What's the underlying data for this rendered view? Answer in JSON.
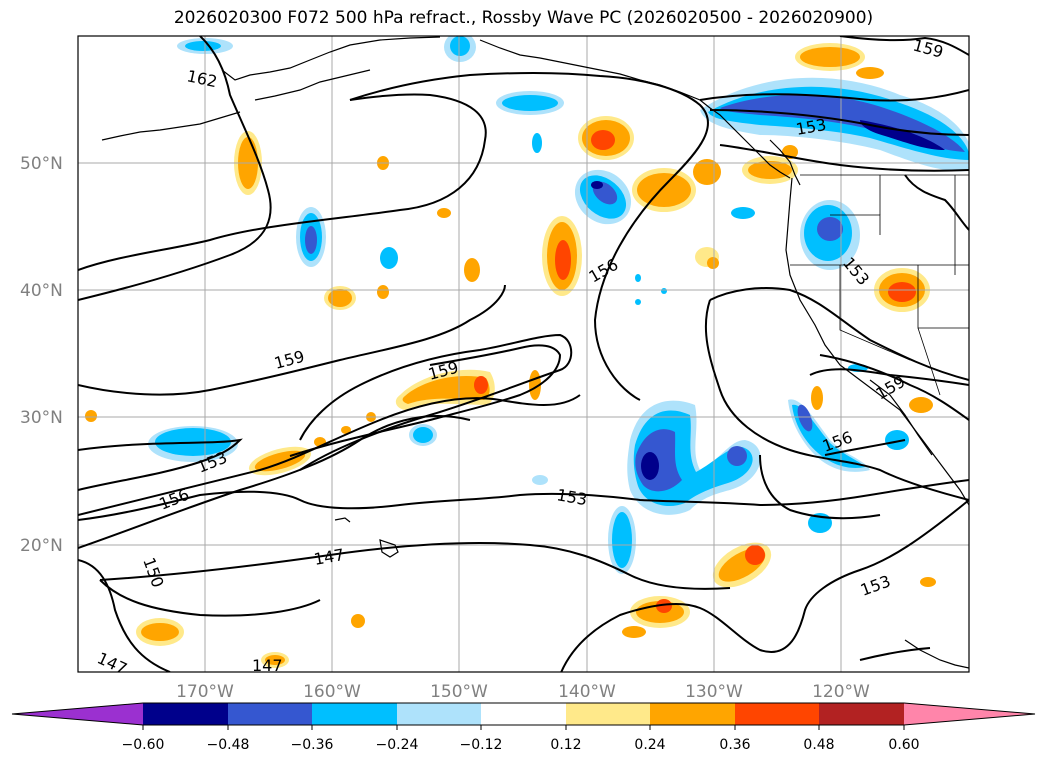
{
  "title": "2026020300 F072 500 hPa refract., Rossby Wave PC (2026020500 - 2026020900)",
  "lat_labels": [
    "50°N",
    "40°N",
    "30°N",
    "20°N"
  ],
  "lon_labels": [
    "170°W",
    "160°W",
    "150°W",
    "140°W",
    "130°W",
    "120°W"
  ],
  "contour_labels": [
    "162",
    "159",
    "153",
    "156",
    "159",
    "159",
    "153",
    "156",
    "153",
    "150",
    "147",
    "147",
    "147",
    "153",
    "156",
    "159",
    "153"
  ],
  "colorbar": {
    "ticks": [
      "−0.60",
      "−0.48",
      "−0.36",
      "−0.24",
      "−0.12",
      "0.12",
      "0.24",
      "0.36",
      "0.48",
      "0.60"
    ],
    "colors": [
      "#9b30d0",
      "#00008b",
      "#3557d0",
      "#00bfff",
      "#aee2fb",
      "#ffffff",
      "#ffe98a",
      "#ffa500",
      "#ff4500",
      "#b22222",
      "#ff85aa"
    ]
  },
  "fill_colors": {
    "neg_light": "#aee2fb",
    "neg_mid": "#00bfff",
    "neg_strong": "#3557d0",
    "neg_max": "#00008b",
    "pos_light": "#ffe98a",
    "pos_mid": "#ffa500",
    "pos_strong": "#ff4500"
  }
}
